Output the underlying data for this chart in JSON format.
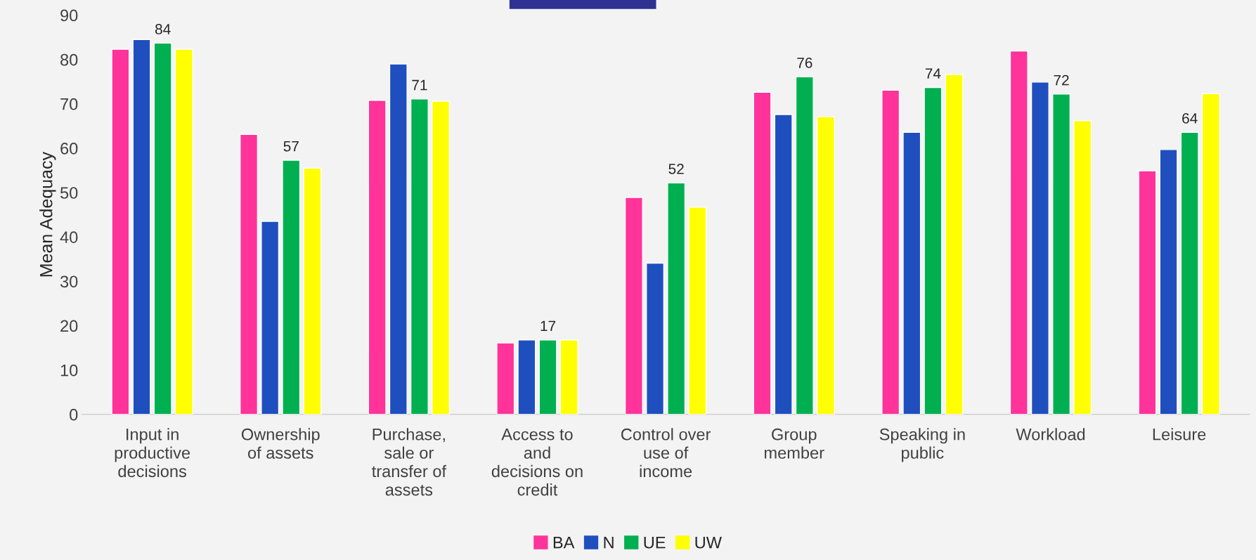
{
  "chart_data": {
    "type": "bar",
    "ylabel": "Mean Adequacy",
    "categories": [
      "Input in\nproductive\ndecisions",
      "Ownership\nof assets",
      "Purchase,\nsale or\ntransfer of\nassets",
      "Access to\nand\ndecisions on\ncredit",
      "Control over\nuse of\nincome",
      "Group\nmember",
      "Speaking in\npublic",
      "Workload",
      "Leisure"
    ],
    "series": [
      {
        "name": "BA",
        "color": "#ff3399",
        "values": [
          82.3,
          63.1,
          70.8,
          16.1,
          48.9,
          72.6,
          73.1,
          81.9,
          54.9
        ]
      },
      {
        "name": "N",
        "color": "#1f4fbf",
        "values": [
          84.5,
          43.5,
          79.0,
          16.8,
          34.1,
          67.6,
          63.6,
          74.9,
          59.7
        ]
      },
      {
        "name": "UE",
        "color": "#00b050",
        "values": [
          83.7,
          57.3,
          71.1,
          16.8,
          52.2,
          76.1,
          73.7,
          72.2,
          63.6
        ],
        "value_labels": [
          "84",
          "57",
          "71",
          "17",
          "52",
          "76",
          "74",
          "72",
          "64"
        ]
      },
      {
        "name": "UW",
        "color": "#ffff00",
        "values": [
          82.3,
          55.5,
          70.6,
          16.8,
          46.7,
          67.1,
          76.6,
          66.2,
          72.3
        ]
      }
    ],
    "ylim": [
      0,
      90
    ],
    "yticks": [
      0,
      10,
      20,
      30,
      40,
      50,
      60,
      70,
      80,
      90
    ],
    "grid": false,
    "legend": "bottom"
  }
}
